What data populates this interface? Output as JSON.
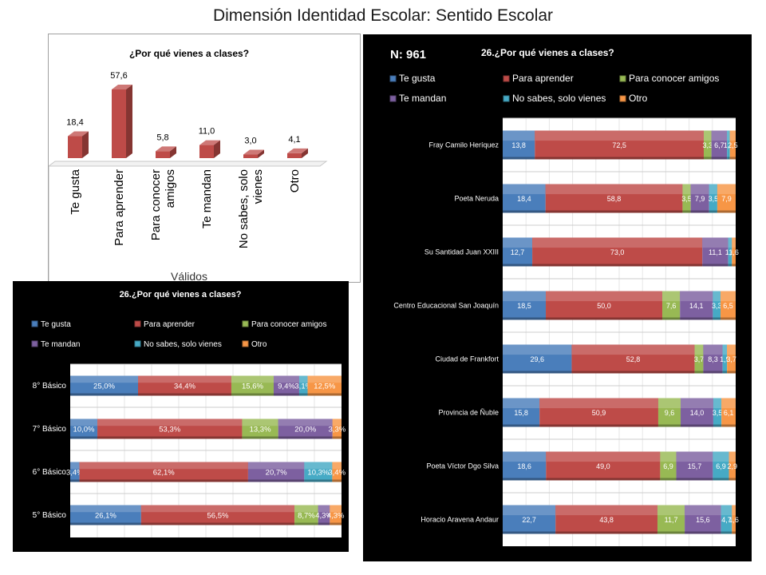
{
  "page_title": "Dimensión Identidad Escolar: Sentido Escolar",
  "colors": {
    "te_gusta": "#4a7ebb",
    "para_aprender": "#be4b48",
    "para_conocer_amigos": "#98b954",
    "te_mandan": "#7d60a0",
    "no_sabes": "#46aac5",
    "otro": "#f79646"
  },
  "chart_data": [
    {
      "type": "bar",
      "title": "¿Por qué vienes a clases?",
      "xlabel": "Válidos",
      "ylabel": "",
      "categories": [
        "Te gusta",
        "Para aprender",
        "Para conocer amigos",
        "Te mandan",
        "No sabes, solo vienes",
        "Otro"
      ],
      "values": [
        18.4,
        57.6,
        5.8,
        11.0,
        3.0,
        4.1
      ],
      "value_labels": [
        "18,4",
        "57,6",
        "5,8",
        "11,0",
        "3,0",
        "4,1"
      ],
      "color": "#be4b48",
      "grid": false
    },
    {
      "type": "bar",
      "orientation": "horizontal-stacked-100",
      "title": "26.¿Por qué vienes a clases?",
      "note": "N: 961",
      "legend_position": "top",
      "categories": [
        "Fray Camilo Heríquez",
        "Poeta Neruda",
        "Su Santidad Juan XXIII",
        "Centro Educacional San Joaquín",
        "Ciudad de Frankfort",
        "Provincia de Ñuble",
        "Poeta Víctor Dgo Silva",
        "Horacio Aravena Andaur"
      ],
      "series": [
        {
          "name": "Te gusta",
          "values": [
            13.8,
            18.4,
            12.7,
            18.5,
            29.6,
            15.8,
            18.6,
            22.7
          ],
          "labels": [
            "13,8",
            "18,4",
            "12,7",
            "18,5",
            "29,6",
            "15,8",
            "18,6",
            "22,7"
          ]
        },
        {
          "name": "Para aprender",
          "values": [
            72.5,
            58.8,
            73.0,
            50.0,
            52.8,
            50.9,
            49.0,
            43.8
          ],
          "labels": [
            "72,5",
            "58,8",
            "73,0",
            "50,0",
            "52,8",
            "50,9",
            "49,0",
            "43,8"
          ]
        },
        {
          "name": "Para conocer amigos",
          "values": [
            3.3,
            3.5,
            0,
            7.6,
            3.7,
            9.6,
            6.9,
            11.7
          ],
          "labels": [
            "3,3",
            "3,5",
            "",
            "7,6",
            "3,7",
            "9,6",
            "6,9",
            "11,7"
          ]
        },
        {
          "name": "Te mandan",
          "values": [
            6.7,
            7.9,
            11.1,
            14.1,
            8.3,
            14.0,
            15.7,
            15.6
          ],
          "labels": [
            "6,7",
            "7,9",
            "11,1",
            "14,1",
            "8,3",
            "14,0",
            "15,7",
            "15,6"
          ]
        },
        {
          "name": "No sabes, solo vienes",
          "values": [
            1.2,
            3.5,
            1.6,
            3.3,
            1.9,
            3.5,
            6.9,
            4.7
          ],
          "labels": [
            "1,2",
            "3,5",
            "1,6",
            "3,3",
            "1,9",
            "3,5",
            "6,9",
            "4,7"
          ]
        },
        {
          "name": "Otro",
          "values": [
            2.5,
            7.9,
            1.6,
            6.5,
            3.7,
            6.1,
            2.9,
            1.6
          ],
          "labels": [
            "2,5",
            "7,9",
            "1,6",
            "6,5",
            "3,7",
            "6,1",
            "2,9",
            "1,6"
          ]
        }
      ]
    },
    {
      "type": "bar",
      "orientation": "horizontal-stacked-100",
      "title": "26.¿Por qué vienes a clases?",
      "legend_position": "top",
      "categories": [
        "8° Básico",
        "7° Básico",
        "6° Básico",
        "5° Básico"
      ],
      "series": [
        {
          "name": "Te gusta",
          "values": [
            25.0,
            10.0,
            3.4,
            26.1
          ],
          "labels": [
            "25,0%",
            "10,0%",
            "3,4%",
            "26,1%"
          ]
        },
        {
          "name": "Para aprender",
          "values": [
            34.4,
            53.3,
            62.1,
            56.5
          ],
          "labels": [
            "34,4%",
            "53,3%",
            "62,1%",
            "56,5%"
          ]
        },
        {
          "name": "Para conocer amigos",
          "values": [
            15.6,
            13.3,
            0,
            8.7
          ],
          "labels": [
            "15,6%",
            "13,3%",
            "",
            "8,7%"
          ]
        },
        {
          "name": "Te mandan",
          "values": [
            9.4,
            20.0,
            20.7,
            4.3
          ],
          "labels": [
            "9,4%",
            "20,0%",
            "20,7%",
            "4,3%"
          ]
        },
        {
          "name": "No sabes, solo vienes",
          "values": [
            3.1,
            0,
            10.3,
            0
          ],
          "labels": [
            "3,1%",
            "",
            "10,3%",
            ""
          ]
        },
        {
          "name": "Otro",
          "values": [
            12.5,
            3.3,
            3.4,
            4.3
          ],
          "labels": [
            "12,5%",
            "3,3%",
            "3,4%",
            "4,3%"
          ]
        }
      ]
    }
  ]
}
